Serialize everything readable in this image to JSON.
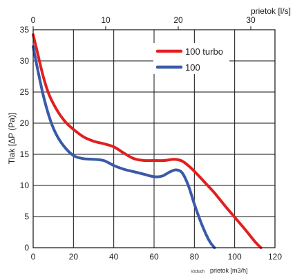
{
  "chart_data": {
    "type": "line",
    "xlabel": "prietok [m3/h]",
    "xlabel_prefix": "Vzduch",
    "x2label": "prietok [l/s]",
    "ylabel": "Tlak [ΔP (Pa)]",
    "xlim": [
      0,
      120
    ],
    "ylim": [
      0,
      35
    ],
    "x2lim": [
      0,
      33.333
    ],
    "x_ticks": [
      "0",
      "20",
      "40",
      "60",
      "80",
      "100",
      "120"
    ],
    "y_ticks": [
      "0",
      "5",
      "10",
      "15",
      "20",
      "25",
      "30",
      "35"
    ],
    "x2_ticks": [
      "0",
      "10",
      "20",
      "30"
    ],
    "grid": true,
    "legend_position": "top-right",
    "series": [
      {
        "name": "100 turbo",
        "color": "#e02020",
        "x": [
          0,
          2,
          5,
          8,
          12,
          16,
          20,
          25,
          30,
          35,
          40,
          45,
          50,
          55,
          60,
          65,
          70,
          74,
          78,
          82,
          86,
          90,
          95,
          100,
          105,
          110,
          113
        ],
        "y": [
          34.2,
          31.5,
          27.5,
          24.5,
          22,
          20.2,
          19,
          17.8,
          17.1,
          16.7,
          16.2,
          15.2,
          14.3,
          14,
          14,
          14,
          14.2,
          13.9,
          12.9,
          11.6,
          10.2,
          8.8,
          6.8,
          4.9,
          3,
          1,
          0
        ]
      },
      {
        "name": "100",
        "color": "#3a5aa8",
        "x": [
          0,
          2,
          5,
          8,
          11,
          15,
          20,
          25,
          30,
          35,
          40,
          45,
          50,
          55,
          60,
          64,
          68,
          71,
          74,
          77,
          80,
          83,
          86,
          88,
          90
        ],
        "y": [
          32.3,
          29,
          24.5,
          21,
          18.5,
          16.4,
          14.8,
          14.3,
          14.2,
          14,
          13.2,
          12.6,
          12.2,
          11.8,
          11.4,
          11.5,
          12.2,
          12.5,
          12,
          10,
          7,
          4.3,
          2,
          0.8,
          0
        ]
      }
    ]
  }
}
